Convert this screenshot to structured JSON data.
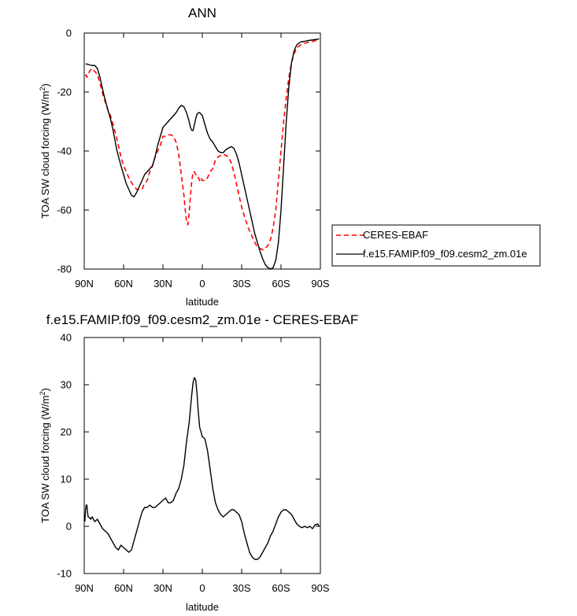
{
  "chart_data": [
    {
      "type": "line",
      "title": "ANN",
      "xlabel": "latitude",
      "ylabel": "TOA SW cloud forcing (W/m",
      "ylabel_sup": "2",
      "ylabel_close": ")",
      "xlim": [
        90,
        -90
      ],
      "ylim": [
        -80,
        0
      ],
      "x_ticks": [
        90,
        60,
        30,
        0,
        -30,
        -60,
        -90
      ],
      "x_tick_labels": [
        "90N",
        "60N",
        "30N",
        "0",
        "30S",
        "60S",
        "90S"
      ],
      "y_ticks": [
        0,
        -20,
        -40,
        -60,
        -80
      ],
      "y_tick_labels": [
        "0",
        "-20",
        "-40",
        "-60",
        "-80"
      ],
      "legend": "outside-right",
      "series": [
        {
          "name": "CERES-EBAF",
          "color": "#ff0000",
          "style": "dashed",
          "x": [
            89,
            88,
            86,
            84,
            82,
            80,
            78,
            75,
            72,
            70,
            68,
            65,
            62,
            60,
            58,
            55,
            52,
            50,
            48,
            46,
            44,
            42,
            40,
            38,
            36,
            34,
            32,
            30,
            28,
            26,
            24,
            22,
            20,
            18,
            16,
            14,
            13,
            12,
            11,
            10,
            9,
            8,
            7,
            6,
            5,
            4,
            3,
            2,
            1,
            0,
            -2,
            -4,
            -6,
            -8,
            -10,
            -12,
            -14,
            -16,
            -18,
            -20,
            -22,
            -24,
            -26,
            -28,
            -30,
            -32,
            -35,
            -38,
            -40,
            -42,
            -44,
            -46,
            -48,
            -50,
            -52,
            -54,
            -56,
            -58,
            -60,
            -62,
            -64,
            -66,
            -68,
            -70,
            -72,
            -75,
            -78,
            -80,
            -83,
            -86,
            -88,
            -89
          ],
          "y": [
            -14,
            -15,
            -13,
            -12,
            -13,
            -14,
            -17,
            -22,
            -26,
            -28,
            -31,
            -36,
            -42,
            -45,
            -47,
            -50,
            -52,
            -53,
            -53,
            -53,
            -51,
            -50,
            -47,
            -45,
            -42,
            -40,
            -38,
            -35,
            -35,
            -34.5,
            -34.5,
            -35,
            -37,
            -41,
            -48,
            -55,
            -60,
            -64,
            -65,
            -61,
            -55,
            -50,
            -47,
            -47,
            -48,
            -48,
            -49,
            -50,
            -49,
            -50,
            -50,
            -49,
            -47,
            -46,
            -43,
            -42,
            -41.5,
            -41,
            -41.5,
            -42,
            -44,
            -47,
            -51,
            -55,
            -59,
            -62,
            -66,
            -69,
            -71,
            -72.5,
            -73,
            -73.5,
            -73,
            -72,
            -70,
            -66,
            -60,
            -50,
            -40,
            -30,
            -22,
            -15,
            -10,
            -7,
            -5,
            -4,
            -3.5,
            -3.2,
            -3,
            -2.6,
            -2.5,
            -2.4
          ]
        },
        {
          "name": "f.e15.FAMIP.f09_f09.cesm2_zm.01e",
          "color": "#000000",
          "style": "solid",
          "x": [
            89,
            88,
            86,
            84,
            82,
            80,
            78,
            75,
            72,
            70,
            68,
            65,
            62,
            60,
            58,
            56,
            55,
            54,
            52,
            50,
            48,
            46,
            44,
            42,
            40,
            38,
            36,
            34,
            32,
            30,
            28,
            26,
            24,
            22,
            20,
            18,
            16,
            14,
            12,
            10,
            9,
            8,
            7,
            6,
            5,
            4,
            3,
            2,
            1,
            0,
            -2,
            -4,
            -6,
            -8,
            -10,
            -12,
            -14,
            -16,
            -18,
            -20,
            -22,
            -24,
            -26,
            -28,
            -30,
            -32,
            -34,
            -36,
            -38,
            -40,
            -42,
            -44,
            -46,
            -48,
            -50,
            -52,
            -54,
            -56,
            -58,
            -60,
            -62,
            -64,
            -66,
            -68,
            -70,
            -72,
            -75,
            -78,
            -80,
            -83,
            -86,
            -88,
            -89
          ],
          "y": [
            -10.5,
            -10.5,
            -10.8,
            -11,
            -11,
            -12,
            -15,
            -21,
            -26,
            -29,
            -33,
            -40,
            -45,
            -48,
            -51,
            -53,
            -54,
            -55,
            -55.5,
            -54,
            -52,
            -50,
            -48,
            -47,
            -46,
            -45,
            -42,
            -38,
            -35,
            -32,
            -31,
            -30,
            -29,
            -28,
            -27,
            -25.5,
            -24.5,
            -25,
            -27,
            -30,
            -32,
            -33,
            -33,
            -31,
            -29,
            -27.5,
            -27,
            -27,
            -27.5,
            -28,
            -31,
            -34,
            -36,
            -37,
            -38.5,
            -40,
            -40.5,
            -40.5,
            -39.5,
            -39,
            -38.5,
            -39,
            -41,
            -44,
            -48,
            -52,
            -56,
            -60,
            -64,
            -68,
            -71,
            -74,
            -76.5,
            -78.5,
            -79.5,
            -80,
            -79.5,
            -77,
            -71,
            -60,
            -45,
            -30,
            -18,
            -10,
            -6,
            -4,
            -3,
            -2.8,
            -2.6,
            -2.4,
            -2.2,
            -2.1,
            -2
          ]
        }
      ]
    },
    {
      "type": "line",
      "title": "f.e15.FAMIP.f09_f09.cesm2_zm.01e - CERES-EBAF",
      "xlabel": "latitude",
      "ylabel": "TOA SW cloud forcing (W/m",
      "ylabel_sup": "2",
      "ylabel_close": ")",
      "xlim": [
        90,
        -90
      ],
      "ylim": [
        -10,
        40
      ],
      "x_ticks": [
        90,
        60,
        30,
        0,
        -30,
        -60,
        -90
      ],
      "x_tick_labels": [
        "90N",
        "60N",
        "30N",
        "0",
        "30S",
        "60S",
        "90S"
      ],
      "y_ticks": [
        40,
        30,
        20,
        10,
        0,
        -10
      ],
      "y_tick_labels": [
        "40",
        "30",
        "20",
        "10",
        "0",
        "-10"
      ],
      "series": [
        {
          "color": "#000000",
          "style": "solid",
          "x": [
            89.5,
            89,
            88.5,
            88,
            87.5,
            87,
            86,
            85,
            84,
            83,
            82,
            80,
            78,
            76,
            74,
            72,
            70,
            68,
            66,
            64,
            62,
            60,
            58,
            56,
            54,
            52,
            50,
            48,
            46,
            44,
            42,
            40,
            38,
            36,
            34,
            32,
            30,
            28,
            26,
            24,
            22,
            20,
            18,
            16,
            14,
            12,
            10,
            9,
            8,
            7,
            6,
            5,
            4,
            3,
            2,
            1,
            0,
            -2,
            -4,
            -6,
            -8,
            -10,
            -12,
            -14,
            -16,
            -18,
            -20,
            -22,
            -24,
            -26,
            -28,
            -30,
            -32,
            -34,
            -36,
            -38,
            -40,
            -42,
            -44,
            -46,
            -48,
            -50,
            -52,
            -54,
            -56,
            -58,
            -60,
            -62,
            -64,
            -66,
            -68,
            -70,
            -72,
            -74,
            -76,
            -78,
            -80,
            -82,
            -84,
            -86,
            -88,
            -89
          ],
          "y": [
            1,
            3.5,
            4.5,
            4.5,
            3,
            2,
            1.8,
            1.5,
            2,
            1.5,
            1,
            1.5,
            0.5,
            -0.5,
            -1,
            -1.5,
            -2.5,
            -3.5,
            -4.5,
            -5,
            -4,
            -4.5,
            -5,
            -5.5,
            -5,
            -3,
            -1,
            1,
            3,
            4,
            4,
            4.5,
            4,
            4,
            4.5,
            5,
            5.5,
            6,
            5,
            5,
            5.5,
            7,
            8,
            10,
            13,
            18,
            22,
            25,
            28,
            30.5,
            31.5,
            31,
            28,
            24,
            21,
            20,
            19,
            18.5,
            16,
            12,
            8,
            5,
            3.5,
            2.5,
            2,
            2.5,
            3,
            3.5,
            3.5,
            3,
            2.5,
            1,
            -1.5,
            -3.5,
            -5.5,
            -6.5,
            -7,
            -7,
            -6.5,
            -5.5,
            -4.5,
            -3.5,
            -2,
            -1,
            0.5,
            2,
            3,
            3.5,
            3.5,
            3,
            2.5,
            1.5,
            0.5,
            0,
            -0.3,
            0,
            -0.3,
            0,
            -0.5,
            0.3,
            0.5,
            0
          ]
        }
      ]
    }
  ]
}
